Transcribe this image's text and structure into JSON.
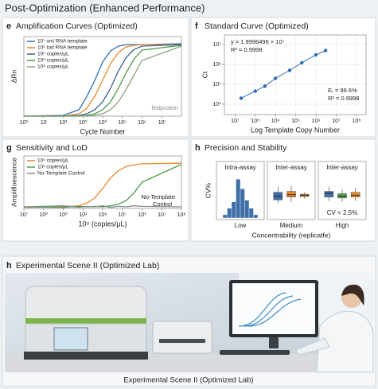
{
  "title": "Post-Optimization (Enhanced Performance)",
  "chart_data": [
    {
      "panel": "e",
      "type": "line",
      "title": "Amplification Curves (Optimized)",
      "x_label": "Cycle Number",
      "y_label": "ΔRn",
      "annotation": "fedprotein",
      "legend": "upper left",
      "x": [
        0,
        10,
        14,
        16,
        18,
        20,
        22,
        24,
        26,
        28,
        30,
        40
      ],
      "xlim": [
        0,
        40
      ],
      "xticks": [
        {
          "value": 0,
          "label": "10⁰"
        },
        {
          "value": 5,
          "label": "10"
        },
        {
          "value": 10,
          "label": "10¹"
        },
        {
          "value": 15,
          "label": "10⁰"
        },
        {
          "value": 20,
          "label": "10⁰"
        },
        {
          "value": 25,
          "label": "10⁵"
        },
        {
          "value": 30,
          "label": "10⁶"
        },
        {
          "value": 35,
          "label": "10'"
        }
      ],
      "ylim": [
        0,
        1
      ],
      "series": [
        {
          "name": "10⁷ ord RNA template",
          "color": "#2f6db5",
          "values": [
            0,
            0.01,
            0.08,
            0.25,
            0.45,
            0.68,
            0.82,
            0.88,
            0.9,
            0.9,
            0.9,
            0.91
          ]
        },
        {
          "name": "10⁶ tod RNA template",
          "color": "#e8892b",
          "values": [
            0,
            0,
            0.03,
            0.1,
            0.25,
            0.45,
            0.66,
            0.8,
            0.87,
            0.89,
            0.9,
            0.9
          ]
        },
        {
          "name": "10⁵ copies/μL",
          "color": "#3b5f8a",
          "values": [
            0,
            0,
            0.01,
            0.03,
            0.08,
            0.18,
            0.35,
            0.57,
            0.74,
            0.84,
            0.88,
            0.9
          ]
        },
        {
          "name": "10⁶ copies/μL",
          "color": "#4a9a4a",
          "values": [
            0,
            0,
            0,
            0.01,
            0.03,
            0.08,
            0.18,
            0.35,
            0.55,
            0.72,
            0.83,
            0.89
          ]
        },
        {
          "name": "10⁸ copies/μL",
          "color": "#8aa67a",
          "values": [
            0,
            0,
            0,
            0,
            0.01,
            0.03,
            0.08,
            0.18,
            0.34,
            0.52,
            0.7,
            0.88
          ]
        }
      ]
    },
    {
      "panel": "f",
      "type": "scatter",
      "title": "Standard Curve (Optimized)",
      "x_label": "Log Template Copy Number",
      "y_label": "Ct",
      "annotations": [
        "y = 1.9996496 × 10⁷",
        "R² = 0.9998",
        "Eᵣ = 99.6%",
        "R² = 0.9998"
      ],
      "xlog": true,
      "ylog": true,
      "grid": true,
      "color": "#2f6db5",
      "x": [
        200,
        1000,
        3000,
        10000,
        50000,
        200000,
        1000000,
        3000000
      ],
      "values": [
        20000,
        45000,
        80000,
        200000,
        500000,
        1200000,
        3000000,
        5000000
      ],
      "xlim": [
        30,
        300000000
      ],
      "xticks": [
        {
          "value": 100,
          "label": "10⁷"
        },
        {
          "value": 1000,
          "label": "10⁸"
        },
        {
          "value": 10000,
          "label": "10⁴"
        },
        {
          "value": 100000,
          "label": "10⁵"
        },
        {
          "value": 1000000,
          "label": "10⁶"
        },
        {
          "value": 10000000,
          "label": "10⁷"
        },
        {
          "value": 100000000,
          "label": "10⁸"
        }
      ],
      "ylim": [
        3000,
        30000000
      ],
      "yticks": [
        {
          "value": 10000,
          "label": "10⁴"
        },
        {
          "value": 100000,
          "label": "10⁵"
        },
        {
          "value": 1000000,
          "label": "10⁶"
        },
        {
          "value": 10000000,
          "label": "10⁷"
        }
      ]
    },
    {
      "panel": "g",
      "type": "line",
      "title": "Sensitivity and LoD",
      "x_label": "10⁹ (copies/μL)",
      "y_label": "Amplifloescence",
      "annotation_lines": [
        "No-Template",
        "Control"
      ],
      "legend": "upper left",
      "x": [
        0,
        10,
        14,
        16,
        18,
        20,
        22,
        24,
        26,
        28,
        30,
        40
      ],
      "xlim": [
        0,
        40
      ],
      "xticks": [
        {
          "value": 0,
          "label": "10⁷"
        },
        {
          "value": 5,
          "label": "10⁰"
        },
        {
          "value": 10,
          "label": "10⁰"
        },
        {
          "value": 15,
          "label": "10¹"
        },
        {
          "value": 20,
          "label": "10⁸"
        },
        {
          "value": 25,
          "label": "10⁵"
        },
        {
          "value": 30,
          "label": "10¹"
        },
        {
          "value": 35,
          "label": "10⁷"
        },
        {
          "value": 40,
          "label": "10⁸"
        }
      ],
      "ylim": [
        0,
        1
      ],
      "series": [
        {
          "name": "10⁵ copies/μL",
          "color": "#e8892b",
          "values": [
            0.02,
            0.03,
            0.05,
            0.1,
            0.2,
            0.38,
            0.58,
            0.72,
            0.8,
            0.83,
            0.85,
            0.86
          ]
        },
        {
          "name": "10³ copies/μL",
          "color": "#4a9a4a",
          "values": [
            0.03,
            0.02,
            0.04,
            0.03,
            0.04,
            0.03,
            0.05,
            0.08,
            0.15,
            0.3,
            0.5,
            0.84
          ]
        },
        {
          "name": "No-Template Control",
          "color": "#7f8c8d",
          "values": [
            0.03,
            0.05,
            0.02,
            0.04,
            0.03,
            0.05,
            0.02,
            0.04,
            0.03,
            0.05,
            0.04,
            0.03
          ]
        }
      ]
    },
    {
      "panel": "h",
      "type": "box",
      "title": "Precision and Stability",
      "titles": [
        "Intra-assay",
        "Inter-assay",
        "Inter-assay"
      ],
      "categories": [
        "Low",
        "Medium",
        "High"
      ],
      "x_label": "Concentrability (replicatfe)",
      "y_label": "CV%",
      "annotation": "CV < 2.5%",
      "histogram": {
        "bins": [
          0,
          1,
          2,
          3,
          4,
          5,
          6,
          7,
          8
        ],
        "counts": [
          2,
          6,
          10,
          24,
          18,
          11,
          6,
          2
        ],
        "color": "#3f6fa8",
        "ylim": [
          0,
          28
        ]
      },
      "ylim": [
        0,
        10
      ],
      "boxes": [
        [],
        [
          {
            "color": "#3f6fa8",
            "min": 3.5,
            "q1": 4.2,
            "median": 5,
            "q3": 5.8,
            "max": 7
          },
          {
            "color": "#e8892b",
            "min": 3.8,
            "q1": 4.8,
            "median": 5.3,
            "q3": 6,
            "max": 7.2
          },
          {
            "color": "#e8892b",
            "min": 4.5,
            "q1": 4.9,
            "median": 5.2,
            "q3": 5.4,
            "max": 5.8
          }
        ],
        [
          {
            "color": "#3f6fa8",
            "min": 4,
            "q1": 4.8,
            "median": 5.6,
            "q3": 6,
            "max": 7
          },
          {
            "color": "#5aa04a",
            "min": 3.8,
            "q1": 4.6,
            "median": 5,
            "q3": 5.5,
            "max": 6.5
          },
          {
            "color": "#e8892b",
            "min": 4,
            "q1": 4.8,
            "median": 5.2,
            "q3": 5.8,
            "max": 6.8
          }
        ]
      ]
    }
  ],
  "scene": {
    "panel": "h",
    "title": "Experimental Scene II (Optimized Lab)",
    "caption": "Experimental Scene II (Optimized Lab)"
  }
}
